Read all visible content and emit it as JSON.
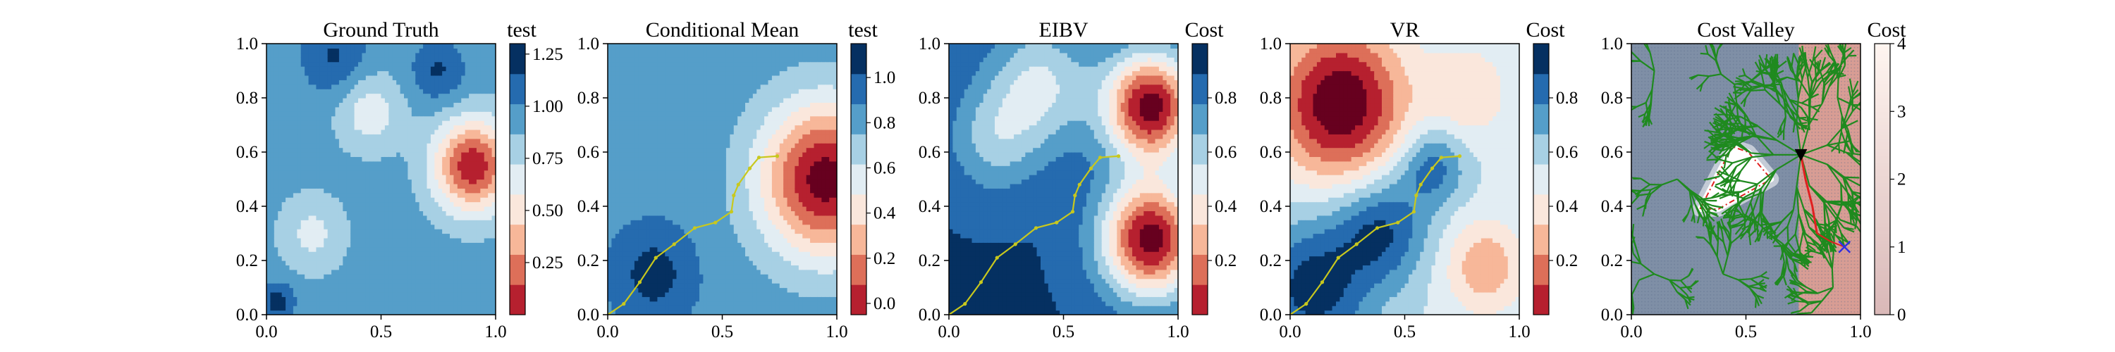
{
  "chart_data": [
    {
      "type": "heatmap",
      "title": "Ground Truth",
      "colorbar_label": "test",
      "colorbar_ticks": [
        "0.25",
        "0.50",
        "0.75",
        "1.00",
        "1.25"
      ],
      "colorbar_tick_values": [
        0.25,
        0.5,
        0.75,
        1.0,
        1.25
      ],
      "colorbar_range": [
        0.0,
        1.3
      ],
      "colormap": "RdBu",
      "xlim": [
        0,
        1
      ],
      "ylim": [
        0,
        1
      ],
      "xticks": [
        "0.0",
        "0.5",
        "1.0"
      ],
      "yticks": [
        "0.0",
        "0.2",
        "0.4",
        "0.6",
        "0.8",
        "1.0"
      ],
      "field": {
        "base": 1.0,
        "blobs": [
          {
            "x": 0.9,
            "y": 0.55,
            "value": -0.9,
            "sigma": 0.12
          },
          {
            "x": 0.3,
            "y": 0.95,
            "value": 0.25,
            "sigma": 0.1
          },
          {
            "x": 0.75,
            "y": 0.9,
            "value": 0.25,
            "sigma": 0.08
          },
          {
            "x": 0.05,
            "y": 0.05,
            "value": 0.3,
            "sigma": 0.05
          },
          {
            "x": 0.45,
            "y": 0.75,
            "value": -0.3,
            "sigma": 0.1
          },
          {
            "x": 0.2,
            "y": 0.3,
            "value": -0.25,
            "sigma": 0.1
          }
        ]
      },
      "path": []
    },
    {
      "type": "heatmap",
      "title": "Conditional Mean",
      "colorbar_label": "test",
      "colorbar_ticks": [
        "0.0",
        "0.2",
        "0.4",
        "0.6",
        "0.8",
        "1.0"
      ],
      "colorbar_tick_values": [
        0.0,
        0.2,
        0.4,
        0.6,
        0.8,
        1.0
      ],
      "colorbar_range": [
        -0.05,
        1.15
      ],
      "colormap": "RdBu",
      "xlim": [
        0,
        1
      ],
      "ylim": [
        0,
        1
      ],
      "xticks": [
        "0.0",
        "0.5",
        "1.0"
      ],
      "yticks": [
        "0.0",
        "0.2",
        "0.4",
        "0.6",
        "0.8",
        "1.0"
      ],
      "field": {
        "base": 0.9,
        "blobs": [
          {
            "x": 0.95,
            "y": 0.5,
            "value": -0.95,
            "sigma": 0.2
          },
          {
            "x": 0.2,
            "y": 0.15,
            "value": 0.25,
            "sigma": 0.12
          }
        ]
      },
      "path": [
        [
          0,
          0
        ],
        [
          0.07,
          0.04
        ],
        [
          0.14,
          0.12
        ],
        [
          0.21,
          0.21
        ],
        [
          0.29,
          0.26
        ],
        [
          0.38,
          0.32
        ],
        [
          0.47,
          0.34
        ],
        [
          0.54,
          0.38
        ],
        [
          0.55,
          0.44
        ],
        [
          0.57,
          0.48
        ],
        [
          0.62,
          0.54
        ],
        [
          0.66,
          0.58
        ],
        [
          0.74,
          0.585
        ]
      ],
      "path_color": "#c8c81e"
    },
    {
      "type": "heatmap",
      "title": "EIBV",
      "colorbar_label": "Cost",
      "colorbar_ticks": [
        "0.2",
        "0.4",
        "0.6",
        "0.8"
      ],
      "colorbar_tick_values": [
        0.2,
        0.4,
        0.6,
        0.8
      ],
      "colorbar_range": [
        0.0,
        1.0
      ],
      "colormap": "RdBu",
      "xlim": [
        0,
        1
      ],
      "ylim": [
        0,
        1
      ],
      "xticks": [
        "0.0",
        "0.5",
        "1.0"
      ],
      "yticks": [
        "0.0",
        "0.2",
        "0.4",
        "0.6",
        "0.8",
        "1.0"
      ],
      "field": {
        "base": 0.95,
        "blobs": [
          {
            "x": 0.88,
            "y": 0.77,
            "value": -0.95,
            "sigma": 0.14
          },
          {
            "x": 0.88,
            "y": 0.28,
            "value": -0.95,
            "sigma": 0.15
          },
          {
            "x": 0.4,
            "y": 0.85,
            "value": -0.35,
            "sigma": 0.16
          },
          {
            "x": 0.2,
            "y": 0.65,
            "value": -0.25,
            "sigma": 0.14
          }
        ]
      },
      "path": [
        [
          0,
          0
        ],
        [
          0.07,
          0.04
        ],
        [
          0.14,
          0.12
        ],
        [
          0.21,
          0.21
        ],
        [
          0.29,
          0.26
        ],
        [
          0.38,
          0.32
        ],
        [
          0.47,
          0.34
        ],
        [
          0.54,
          0.38
        ],
        [
          0.55,
          0.44
        ],
        [
          0.57,
          0.48
        ],
        [
          0.62,
          0.54
        ],
        [
          0.66,
          0.58
        ],
        [
          0.74,
          0.585
        ]
      ],
      "path_color": "#c8c81e"
    },
    {
      "type": "heatmap",
      "title": "VR",
      "colorbar_label": "Cost",
      "colorbar_ticks": [
        "0.2",
        "0.4",
        "0.6",
        "0.8"
      ],
      "colorbar_tick_values": [
        0.2,
        0.4,
        0.6,
        0.8
      ],
      "colorbar_range": [
        0.0,
        1.0
      ],
      "colormap": "RdBu",
      "xlim": [
        0,
        1
      ],
      "ylim": [
        0,
        1
      ],
      "xticks": [
        "0.0",
        "0.5",
        "1.0"
      ],
      "yticks": [
        "0.0",
        "0.2",
        "0.4",
        "0.6",
        "0.8",
        "1.0"
      ],
      "field": {
        "base": 0.6,
        "blobs": [
          {
            "x": 0.22,
            "y": 0.78,
            "value": -0.65,
            "sigma": 0.2
          },
          {
            "x": 0.85,
            "y": 0.18,
            "value": -0.3,
            "sigma": 0.12
          },
          {
            "x": 0.78,
            "y": 0.82,
            "value": -0.2,
            "sigma": 0.12
          },
          {
            "x": 0.1,
            "y": 0.1,
            "value": 0.4,
            "sigma": 0.18
          },
          {
            "x": 0.4,
            "y": 0.32,
            "value": 0.35,
            "sigma": 0.14
          },
          {
            "x": 0.62,
            "y": 0.55,
            "value": 0.3,
            "sigma": 0.1
          }
        ]
      },
      "path": [
        [
          0,
          0
        ],
        [
          0.07,
          0.04
        ],
        [
          0.14,
          0.12
        ],
        [
          0.21,
          0.21
        ],
        [
          0.29,
          0.26
        ],
        [
          0.38,
          0.32
        ],
        [
          0.47,
          0.34
        ],
        [
          0.54,
          0.38
        ],
        [
          0.55,
          0.44
        ],
        [
          0.57,
          0.48
        ],
        [
          0.62,
          0.54
        ],
        [
          0.66,
          0.58
        ],
        [
          0.74,
          0.585
        ]
      ],
      "path_color": "#c8c81e"
    },
    {
      "type": "heatmap",
      "title": "Cost Valley",
      "colorbar_label": "Cost",
      "colorbar_ticks": [
        "0",
        "1",
        "2",
        "3",
        "4"
      ],
      "colorbar_tick_values": [
        0,
        1,
        2,
        3,
        4
      ],
      "colorbar_range": [
        0,
        4
      ],
      "colormap": "Reds",
      "xlim": [
        0,
        1
      ],
      "ylim": [
        0,
        1
      ],
      "xticks": [
        "0.0",
        "0.5",
        "1.0"
      ],
      "yticks": [
        "0.0",
        "0.2",
        "0.4",
        "0.6",
        "0.8",
        "1.0"
      ],
      "obstacle_polygon": [
        [
          0.3,
          0.39
        ],
        [
          0.44,
          0.62
        ],
        [
          0.51,
          0.6
        ],
        [
          0.61,
          0.5
        ],
        [
          0.38,
          0.39
        ]
      ],
      "current_location": [
        0.74,
        0.59
      ],
      "target_location": [
        0.93,
        0.25
      ],
      "planned_path": [
        [
          0.74,
          0.59
        ],
        [
          0.76,
          0.5
        ],
        [
          0.79,
          0.4
        ],
        [
          0.81,
          0.3
        ]
      ],
      "planned_path_extension": [
        [
          0.81,
          0.3
        ],
        [
          0.87,
          0.27
        ],
        [
          0.93,
          0.25
        ]
      ],
      "colors": {
        "tree": "#1f8a1f",
        "planned_path": "#e02020",
        "obstacle_border": "#e02020",
        "target": "#3030e0"
      }
    }
  ]
}
